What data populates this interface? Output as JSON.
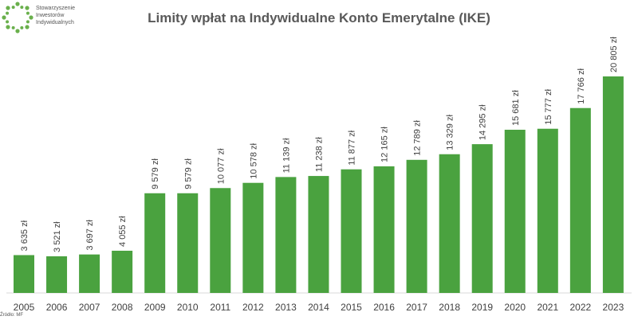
{
  "logo": {
    "lines": [
      "Stowarzyszenie",
      "Inwestorów",
      "Indywidualnych"
    ]
  },
  "source": "Źródło: MF",
  "colors": {
    "bar": "#4aa23f",
    "title": "#595959",
    "text": "#404040",
    "axis": "#d9d9d9"
  },
  "chart_data": {
    "type": "bar",
    "title": "Limity wpłat na Indywidualne Konto Emerytalne (IKE)",
    "xlabel": "",
    "ylabel": "",
    "categories": [
      "2005",
      "2006",
      "2007",
      "2008",
      "2009",
      "2010",
      "2011",
      "2012",
      "2013",
      "2014",
      "2015",
      "2016",
      "2017",
      "2018",
      "2019",
      "2020",
      "2021",
      "2022",
      "2023"
    ],
    "values": [
      3635,
      3521,
      3697,
      4055,
      9579,
      9579,
      10077,
      10578,
      11139,
      11238,
      11877,
      12165,
      12789,
      13329,
      14295,
      15681,
      15777,
      17766,
      20805
    ],
    "data_labels": [
      "3 635 zł",
      "3 521 zł",
      "3 697 zł",
      "4 055 zł",
      "9 579 zł",
      "9 579 zł",
      "10 077 zł",
      "10 578 zł",
      "11 139 zł",
      "11 238 zł",
      "11 877 zł",
      "12 165 zł",
      "12 789 zł",
      "13 329 zł",
      "14 295 zł",
      "15 681 zł",
      "15 777 zł",
      "17 766 zł",
      "20 805 zł"
    ],
    "ylim": [
      0,
      22000
    ],
    "grid": false,
    "legend": "none"
  }
}
